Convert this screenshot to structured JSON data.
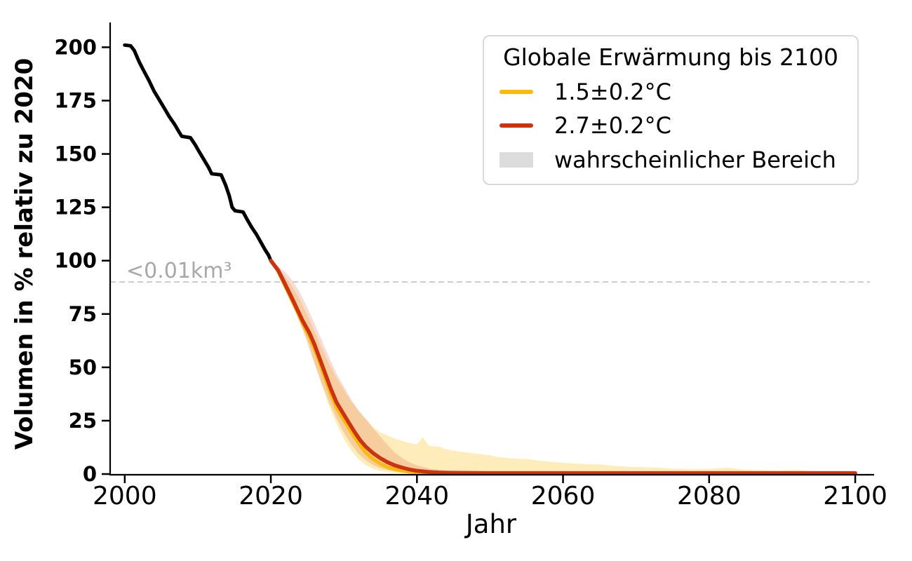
{
  "chart_data": {
    "type": "line",
    "title": "",
    "xlabel": "Jahr",
    "ylabel": "Volumen in % relativ zu 2020",
    "xlim": [
      1998,
      2102.3
    ],
    "ylim": [
      0,
      209
    ],
    "xticks": [
      "2000",
      "2020",
      "2040",
      "2060",
      "2080",
      "2100"
    ],
    "xtick_values": [
      2000,
      2020,
      2040,
      2060,
      2080,
      2100
    ],
    "yticks": [
      "0",
      "25",
      "50",
      "75",
      "100",
      "125",
      "150",
      "175",
      "200"
    ],
    "ytick_values": [
      0,
      25,
      50,
      75,
      100,
      125,
      150,
      175,
      200
    ],
    "grid": "off",
    "threshold": {
      "value": 90,
      "label": "<0.01km³",
      "line_color": "#c6c6c6",
      "label_color": "#a8a8a8"
    },
    "legend": {
      "position": "upper right",
      "title": "Globale Erwärmung bis 2100",
      "entries": [
        {
          "label": "1.5±0.2°C",
          "type": "line",
          "color": "#fbbc09"
        },
        {
          "label": "2.7±0.2°C",
          "type": "line",
          "color": "#cc3311"
        },
        {
          "label": "wahrscheinlicher Bereich",
          "type": "patch",
          "color": "#dcdcdc"
        }
      ]
    },
    "series": [
      {
        "name": "historical-volume",
        "color": "#000000",
        "width": 5,
        "points": [
          [
            2000,
            201
          ],
          [
            2000.8,
            200.7
          ],
          [
            2001.3,
            198.5
          ],
          [
            2002,
            193
          ],
          [
            2002.6,
            189
          ],
          [
            2003.3,
            184.5
          ],
          [
            2004,
            179.5
          ],
          [
            2004.7,
            175.5
          ],
          [
            2005.4,
            171.5
          ],
          [
            2006.1,
            167.5
          ],
          [
            2006.8,
            164
          ],
          [
            2007.4,
            160.5
          ],
          [
            2007.8,
            158.3
          ],
          [
            2009,
            157.6
          ],
          [
            2009.6,
            154.5
          ],
          [
            2010.2,
            151
          ],
          [
            2010.9,
            147
          ],
          [
            2011.5,
            143.5
          ],
          [
            2011.9,
            140.7
          ],
          [
            2013.2,
            140.2
          ],
          [
            2013.8,
            135.5
          ],
          [
            2014.3,
            130.5
          ],
          [
            2014.7,
            125
          ],
          [
            2015.1,
            123.4
          ],
          [
            2016.2,
            122.8
          ],
          [
            2016.8,
            119
          ],
          [
            2017.4,
            115.5
          ],
          [
            2018,
            112.5
          ],
          [
            2018.6,
            108.8
          ],
          [
            2019.2,
            105.2
          ],
          [
            2019.7,
            102.5
          ],
          [
            2020,
            100
          ]
        ]
      },
      {
        "name": "scenario-1.5C",
        "color": "#fbbc09",
        "width": 5,
        "points": [
          [
            2020,
            100
          ],
          [
            2021,
            95
          ],
          [
            2021.8,
            89.3
          ],
          [
            2022.6,
            83.5
          ],
          [
            2023.5,
            77
          ],
          [
            2024.4,
            70
          ],
          [
            2025.3,
            64
          ],
          [
            2026,
            58.5
          ],
          [
            2026.7,
            52
          ],
          [
            2027.4,
            45
          ],
          [
            2028.2,
            37.5
          ],
          [
            2029,
            31
          ],
          [
            2029.8,
            26.5
          ],
          [
            2030.6,
            22
          ],
          [
            2031.4,
            17.5
          ],
          [
            2032.2,
            13.5
          ],
          [
            2033,
            10
          ],
          [
            2034,
            7
          ],
          [
            2035,
            4.8
          ],
          [
            2036,
            3.2
          ],
          [
            2037,
            2.2
          ],
          [
            2038,
            1.5
          ],
          [
            2039,
            1
          ],
          [
            2040,
            0.7
          ],
          [
            2042,
            0.4
          ],
          [
            2045,
            0.3
          ],
          [
            2050,
            0.25
          ],
          [
            2060,
            0.2
          ],
          [
            2080,
            0.2
          ],
          [
            2100,
            0.2
          ]
        ]
      },
      {
        "name": "scenario-2.7C",
        "color": "#cc3311",
        "width": 5.5,
        "points": [
          [
            2020,
            100
          ],
          [
            2021,
            95.5
          ],
          [
            2021.8,
            90
          ],
          [
            2022.6,
            84.5
          ],
          [
            2023.5,
            78
          ],
          [
            2024.4,
            71.5
          ],
          [
            2025.3,
            66
          ],
          [
            2026,
            60.5
          ],
          [
            2026.7,
            54
          ],
          [
            2027.4,
            47.5
          ],
          [
            2028.2,
            40
          ],
          [
            2029,
            33.5
          ],
          [
            2029.8,
            29
          ],
          [
            2030.6,
            24.5
          ],
          [
            2031.4,
            20
          ],
          [
            2032.2,
            16
          ],
          [
            2033,
            12.8
          ],
          [
            2034,
            9.8
          ],
          [
            2035,
            7.4
          ],
          [
            2036,
            5.5
          ],
          [
            2037,
            4
          ],
          [
            2038,
            3
          ],
          [
            2039,
            2.1
          ],
          [
            2040,
            1.5
          ],
          [
            2041.5,
            1
          ],
          [
            2043,
            0.7
          ],
          [
            2045,
            0.55
          ],
          [
            2050,
            0.45
          ],
          [
            2060,
            0.45
          ],
          [
            2070,
            0.45
          ],
          [
            2080,
            0.45
          ],
          [
            2090,
            0.45
          ],
          [
            2100,
            0.45
          ]
        ]
      }
    ],
    "bands": [
      {
        "name": "band-1.5C",
        "fill": "rgba(251,188,9,0.28)",
        "upper": [
          [
            2020,
            100
          ],
          [
            2021,
            96.5
          ],
          [
            2022,
            92.5
          ],
          [
            2023,
            87.5
          ],
          [
            2024,
            81.5
          ],
          [
            2025,
            74.5
          ],
          [
            2026,
            67
          ],
          [
            2027,
            59
          ],
          [
            2028,
            51.5
          ],
          [
            2029,
            45
          ],
          [
            2030,
            39.5
          ],
          [
            2031,
            34
          ],
          [
            2032,
            29.5
          ],
          [
            2033,
            25.5
          ],
          [
            2034,
            22
          ],
          [
            2035,
            19.5
          ],
          [
            2036,
            18
          ],
          [
            2037,
            16.5
          ],
          [
            2038,
            15.5
          ],
          [
            2039,
            14.5
          ],
          [
            2040,
            14
          ],
          [
            2040.8,
            17.2
          ],
          [
            2041.6,
            13.2
          ],
          [
            2043,
            12.8
          ],
          [
            2044,
            11.6
          ],
          [
            2045,
            11
          ],
          [
            2046,
            10.4
          ],
          [
            2048,
            9.6
          ],
          [
            2050,
            8.8
          ],
          [
            2051,
            8
          ],
          [
            2053,
            7.3
          ],
          [
            2055,
            7
          ],
          [
            2057,
            6.2
          ],
          [
            2059,
            5.5
          ],
          [
            2061,
            5
          ],
          [
            2063,
            4.7
          ],
          [
            2065,
            4.5
          ],
          [
            2067,
            3.8
          ],
          [
            2069,
            3.4
          ],
          [
            2071,
            3.2
          ],
          [
            2073,
            3
          ],
          [
            2075,
            2.6
          ],
          [
            2077,
            2.4
          ],
          [
            2079,
            2.3
          ],
          [
            2080.5,
            2.5
          ],
          [
            2082.5,
            3
          ],
          [
            2084,
            2.3
          ],
          [
            2086,
            1.9
          ],
          [
            2088,
            1.7
          ],
          [
            2090,
            1.6
          ],
          [
            2092,
            1.9
          ],
          [
            2094,
            1.3
          ],
          [
            2096,
            1.1
          ],
          [
            2098,
            1
          ],
          [
            2100,
            0.9
          ]
        ],
        "lower": [
          [
            2020,
            100
          ],
          [
            2021,
            94.5
          ],
          [
            2022,
            88
          ],
          [
            2023,
            80.5
          ],
          [
            2024,
            72
          ],
          [
            2025,
            62.5
          ],
          [
            2026,
            52
          ],
          [
            2027,
            41.5
          ],
          [
            2028,
            31.5
          ],
          [
            2029,
            23.5
          ],
          [
            2030,
            16.5
          ],
          [
            2031,
            11
          ],
          [
            2032,
            7
          ],
          [
            2033,
            4.2
          ],
          [
            2034,
            2.5
          ],
          [
            2035,
            1.4
          ],
          [
            2036,
            0.9
          ],
          [
            2038,
            0.5
          ],
          [
            2040,
            0.3
          ],
          [
            2050,
            0.2
          ],
          [
            2100,
            0.15
          ]
        ]
      },
      {
        "name": "band-2.7C",
        "fill": "rgba(204,51,17,0.17)",
        "upper": [
          [
            2020,
            100
          ],
          [
            2021,
            97.5
          ],
          [
            2022,
            94.5
          ],
          [
            2023,
            90.5
          ],
          [
            2024,
            85
          ],
          [
            2025,
            78
          ],
          [
            2026,
            70.5
          ],
          [
            2027,
            62.5
          ],
          [
            2028,
            54.5
          ],
          [
            2029,
            47
          ],
          [
            2030,
            41
          ],
          [
            2031,
            35
          ],
          [
            2032,
            30
          ],
          [
            2033,
            26
          ],
          [
            2034,
            21.5
          ],
          [
            2035,
            17.5
          ],
          [
            2036,
            13.5
          ],
          [
            2037,
            10
          ],
          [
            2038,
            7.5
          ],
          [
            2039,
            5.5
          ],
          [
            2040,
            4
          ],
          [
            2042,
            2.4
          ],
          [
            2044,
            1.6
          ],
          [
            2046,
            1.2
          ],
          [
            2050,
            0.9
          ],
          [
            2060,
            0.7
          ],
          [
            2080,
            0.6
          ],
          [
            2100,
            0.6
          ]
        ],
        "lower": [
          [
            2020,
            100
          ],
          [
            2021,
            93.5
          ],
          [
            2022,
            87
          ],
          [
            2023,
            79.5
          ],
          [
            2024,
            71
          ],
          [
            2025,
            61.5
          ],
          [
            2026,
            51.5
          ],
          [
            2027,
            42
          ],
          [
            2028,
            33.5
          ],
          [
            2029,
            26
          ],
          [
            2030,
            19.5
          ],
          [
            2031,
            14
          ],
          [
            2032,
            9.5
          ],
          [
            2033,
            6.5
          ],
          [
            2034,
            4.2
          ],
          [
            2035,
            2.7
          ],
          [
            2036,
            1.8
          ],
          [
            2037,
            1.2
          ],
          [
            2038,
            0.8
          ],
          [
            2040,
            0.5
          ],
          [
            2045,
            0.3
          ],
          [
            2060,
            0.25
          ],
          [
            2100,
            0.2
          ]
        ]
      }
    ]
  }
}
